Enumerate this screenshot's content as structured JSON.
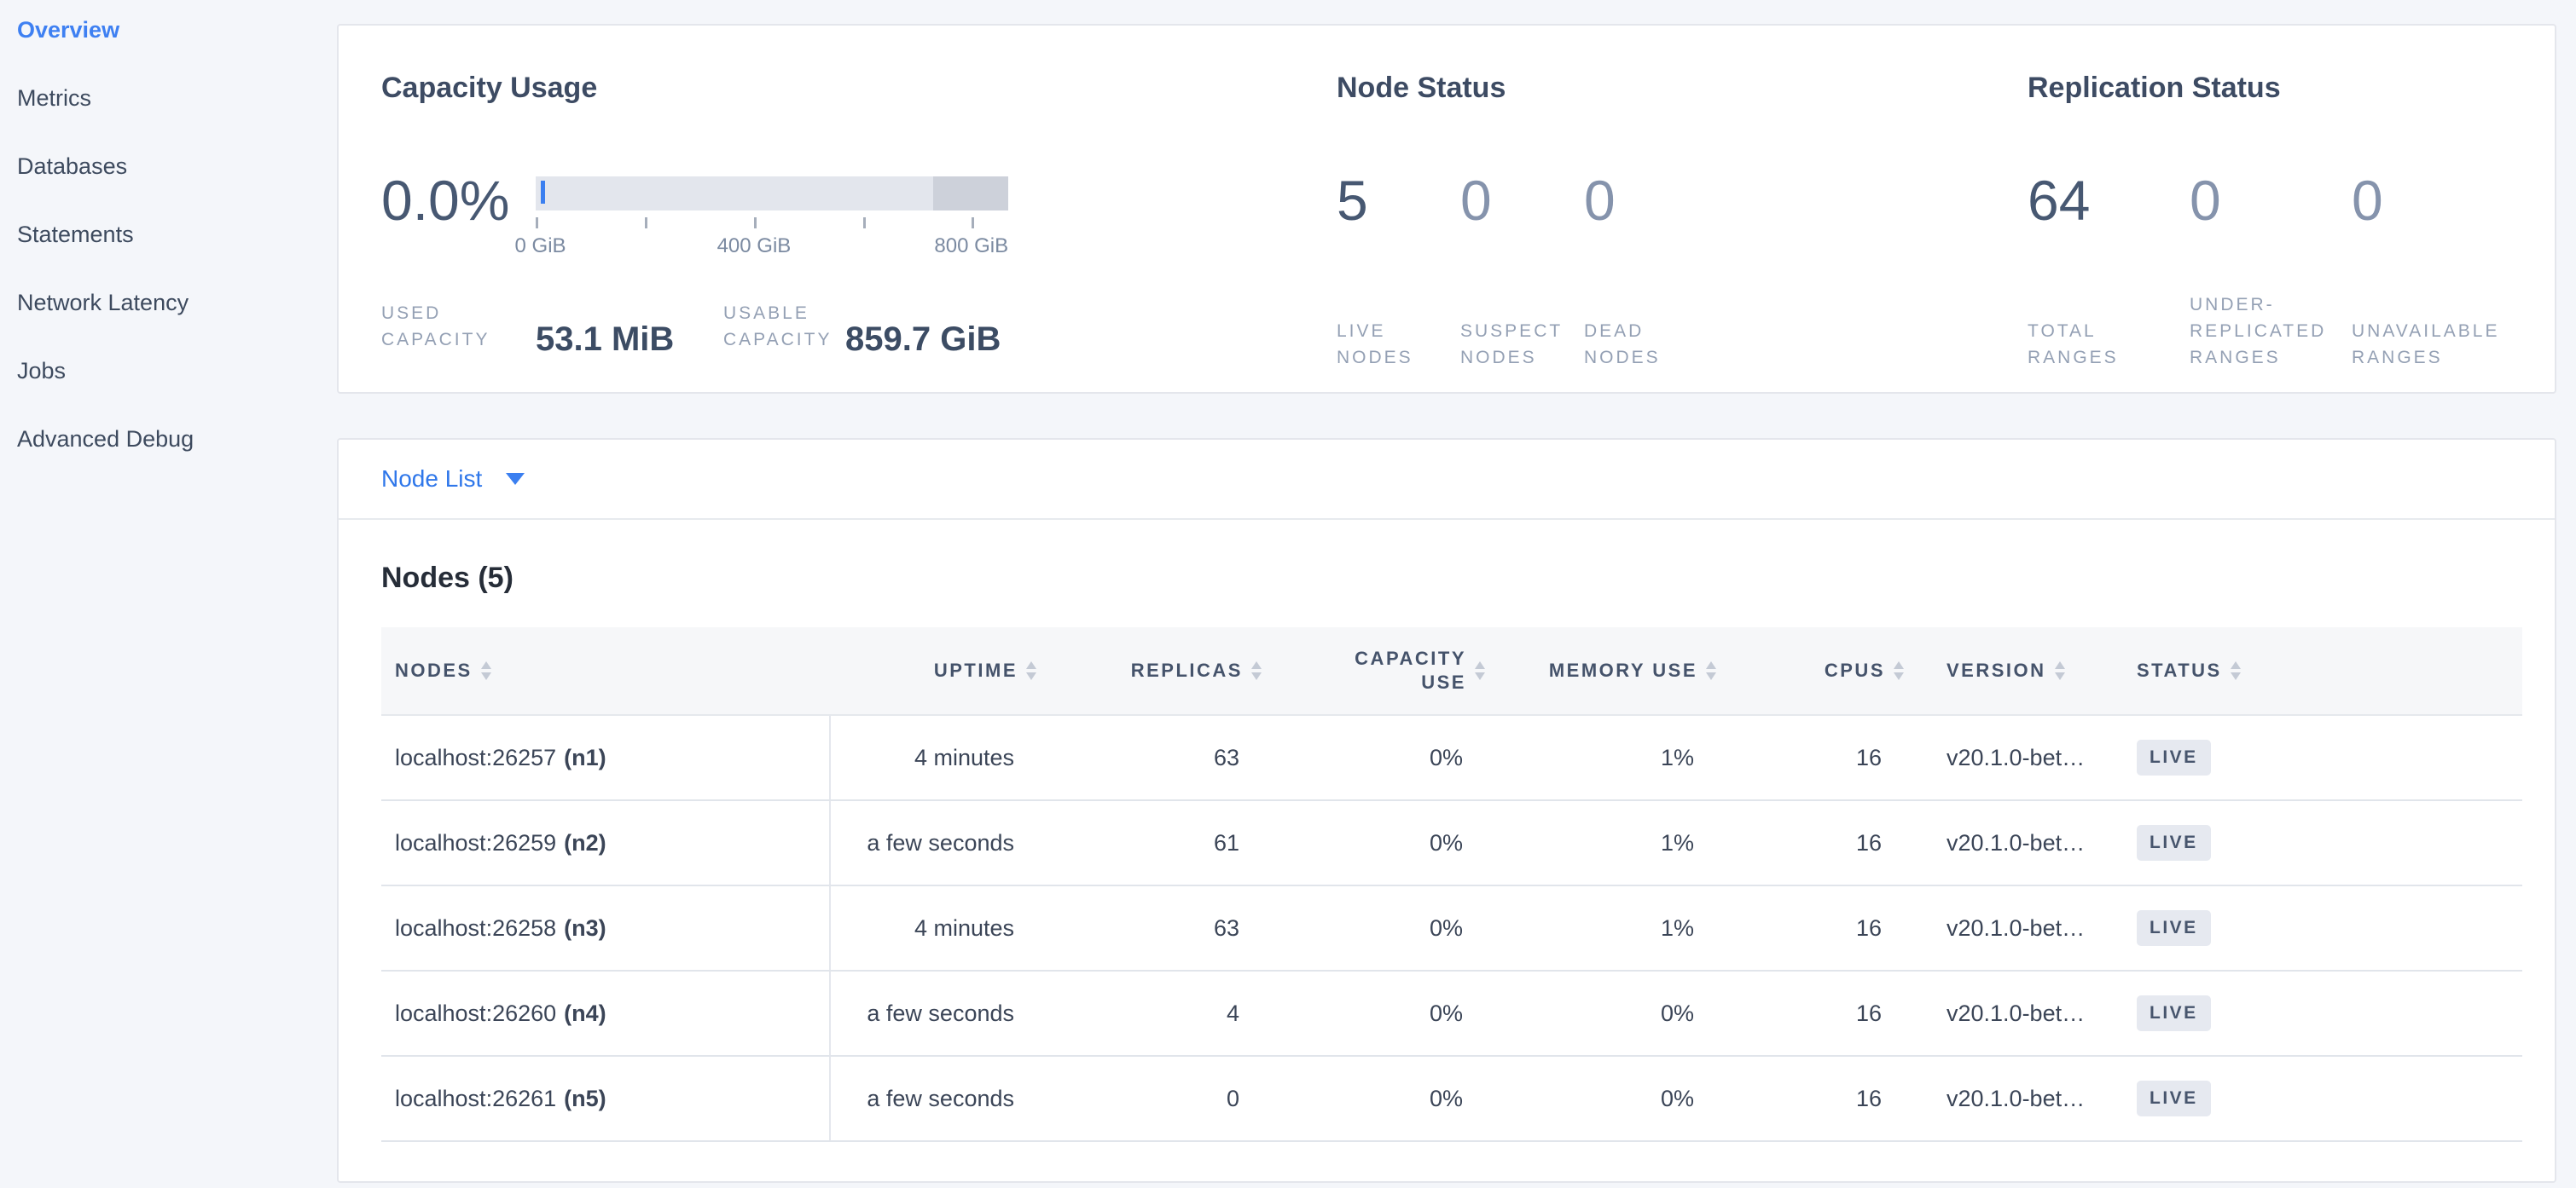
{
  "colors": {
    "accent_blue": "#3b7ff0",
    "page_background": "#f4f6fa",
    "badge_background": "#e6e9f0",
    "badge_text": "#47556d",
    "gauge_track": "#e3e6ed",
    "gauge_over_segment": "#cdd1da"
  },
  "sidebar": {
    "items": [
      {
        "label": "Overview",
        "active": true
      },
      {
        "label": "Metrics",
        "active": false
      },
      {
        "label": "Databases",
        "active": false
      },
      {
        "label": "Statements",
        "active": false
      },
      {
        "label": "Network Latency",
        "active": false
      },
      {
        "label": "Jobs",
        "active": false
      },
      {
        "label": "Advanced Debug",
        "active": false
      }
    ]
  },
  "capacity": {
    "title": "Capacity Usage",
    "percent_used": "0.0%",
    "gauge": {
      "tick_labels": [
        "0 GiB",
        "400 GiB",
        "800 GiB"
      ],
      "used_marker_position": "0",
      "scale_max": "860 GiB"
    },
    "stats": [
      {
        "label_lines": [
          "USED",
          "CAPACITY"
        ],
        "value": "53.1 MiB"
      },
      {
        "label_lines": [
          "USABLE",
          "CAPACITY"
        ],
        "value": "859.7 GiB"
      }
    ]
  },
  "node_status": {
    "title": "Node Status",
    "metrics": [
      {
        "value": "5",
        "label_lines": [
          "LIVE",
          "NODES"
        ]
      },
      {
        "value": "0",
        "label_lines": [
          "SUSPECT",
          "NODES"
        ]
      },
      {
        "value": "0",
        "label_lines": [
          "DEAD",
          "NODES"
        ]
      }
    ]
  },
  "replication_status": {
    "title": "Replication Status",
    "metrics": [
      {
        "value": "64",
        "label_lines": [
          "TOTAL",
          "RANGES"
        ]
      },
      {
        "value": "0",
        "label_lines": [
          "UNDER-",
          "REPLICATED",
          "RANGES"
        ]
      },
      {
        "value": "0",
        "label_lines": [
          "UNAVAILABLE",
          "RANGES"
        ]
      }
    ]
  },
  "node_list": {
    "label": "Node List"
  },
  "nodes": {
    "heading": "Nodes (5)",
    "columns": [
      {
        "lines": [
          "NODES",
          ""
        ]
      },
      {
        "lines": [
          "UPTIME",
          ""
        ]
      },
      {
        "lines": [
          "REPLICAS",
          ""
        ]
      },
      {
        "lines": [
          "CAPACITY",
          "USE"
        ]
      },
      {
        "lines": [
          "MEMORY USE",
          ""
        ]
      },
      {
        "lines": [
          "CPUS",
          ""
        ]
      },
      {
        "lines": [
          "VERSION",
          ""
        ]
      },
      {
        "lines": [
          "STATUS",
          ""
        ]
      }
    ],
    "rows": [
      {
        "node": "localhost:26257",
        "id": "(n1)",
        "uptime": "4 minutes",
        "replicas": "63",
        "capacity_use": "0%",
        "memory_use": "1%",
        "cpus": "16",
        "version": "v20.1.0-bet…",
        "status": "LIVE"
      },
      {
        "node": "localhost:26259",
        "id": "(n2)",
        "uptime": "a few seconds",
        "replicas": "61",
        "capacity_use": "0%",
        "memory_use": "1%",
        "cpus": "16",
        "version": "v20.1.0-bet…",
        "status": "LIVE"
      },
      {
        "node": "localhost:26258",
        "id": "(n3)",
        "uptime": "4 minutes",
        "replicas": "63",
        "capacity_use": "0%",
        "memory_use": "1%",
        "cpus": "16",
        "version": "v20.1.0-bet…",
        "status": "LIVE"
      },
      {
        "node": "localhost:26260",
        "id": "(n4)",
        "uptime": "a few seconds",
        "replicas": "4",
        "capacity_use": "0%",
        "memory_use": "0%",
        "cpus": "16",
        "version": "v20.1.0-bet…",
        "status": "LIVE"
      },
      {
        "node": "localhost:26261",
        "id": "(n5)",
        "uptime": "a few seconds",
        "replicas": "0",
        "capacity_use": "0%",
        "memory_use": "0%",
        "cpus": "16",
        "version": "v20.1.0-bet…",
        "status": "LIVE"
      }
    ]
  }
}
